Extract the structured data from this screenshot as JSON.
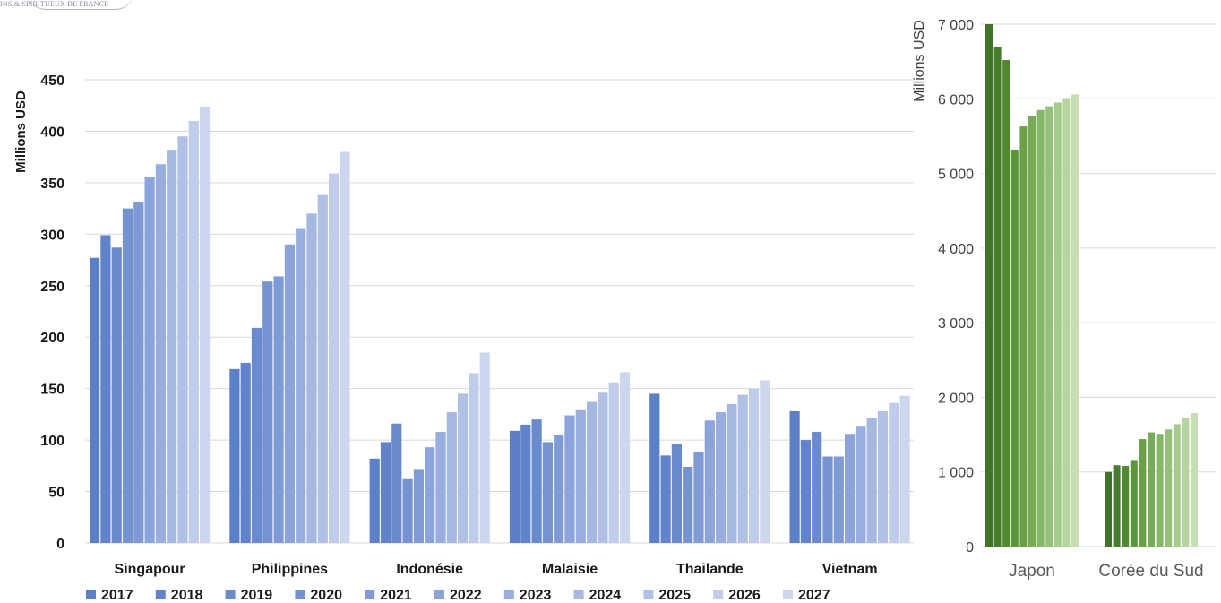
{
  "header": {
    "source_text": "INS & SPIRITUEUX DE FRANCE"
  },
  "chart_data": [
    {
      "type": "bar",
      "ylabel": "Millions USD",
      "xlabel": "",
      "ylim": [
        0,
        450
      ],
      "y_ticks": [
        0,
        50,
        100,
        150,
        200,
        250,
        300,
        350,
        400,
        450
      ],
      "grid": true,
      "legend_position": "bottom",
      "categories": [
        "Singapour",
        "Philippines",
        "Indonésie",
        "Malaisie",
        "Thailande",
        "Vietnam"
      ],
      "series": [
        {
          "name": "2017",
          "color": "#5b7fc9",
          "values": [
            277,
            169,
            82,
            109,
            145,
            128
          ]
        },
        {
          "name": "2018",
          "color": "#6183cb",
          "values": [
            299,
            175,
            98,
            115,
            85,
            100
          ]
        },
        {
          "name": "2019",
          "color": "#6a8ace",
          "values": [
            287,
            209,
            116,
            120,
            96,
            108
          ]
        },
        {
          "name": "2020",
          "color": "#7592d1",
          "values": [
            325,
            254,
            62,
            98,
            74,
            84
          ]
        },
        {
          "name": "2021",
          "color": "#7f9bd5",
          "values": [
            331,
            259,
            71,
            105,
            88,
            84
          ]
        },
        {
          "name": "2022",
          "color": "#8ba4d9",
          "values": [
            356,
            290,
            93,
            124,
            119,
            106
          ]
        },
        {
          "name": "2023",
          "color": "#97aede",
          "values": [
            368,
            305,
            108,
            129,
            127,
            113
          ]
        },
        {
          "name": "2024",
          "color": "#a4b8e2",
          "values": [
            382,
            320,
            127,
            137,
            135,
            121
          ]
        },
        {
          "name": "2025",
          "color": "#b1c1e6",
          "values": [
            395,
            338,
            145,
            146,
            144,
            128
          ]
        },
        {
          "name": "2026",
          "color": "#bfcceb",
          "values": [
            410,
            359,
            165,
            156,
            150,
            136
          ]
        },
        {
          "name": "2027",
          "color": "#ccd6ef",
          "values": [
            424,
            380,
            185,
            166,
            158,
            143
          ]
        }
      ]
    },
    {
      "type": "bar",
      "ylabel": "Millions USD",
      "xlabel": "",
      "ylim": [
        0,
        7000
      ],
      "y_ticks": [
        0,
        1000,
        2000,
        3000,
        4000,
        5000,
        6000,
        7000
      ],
      "y_tick_labels": [
        "0",
        "1 000",
        "2 000",
        "3 000",
        "4 000",
        "5 000",
        "6 000",
        "7 000"
      ],
      "grid": true,
      "categories": [
        "Japon",
        "Corée du Sud"
      ],
      "colors": [
        "#3f7325",
        "#477d2a",
        "#518932",
        "#5c953c",
        "#69a048",
        "#77ab58",
        "#86b668",
        "#95c079",
        "#a5ca8b",
        "#b5d49e",
        "#c6deb2"
      ],
      "series": [
        {
          "name": "2017",
          "values": [
            7000,
            1000
          ]
        },
        {
          "name": "2018",
          "values": [
            6700,
            1090
          ]
        },
        {
          "name": "2019",
          "values": [
            6520,
            1080
          ]
        },
        {
          "name": "2020",
          "values": [
            5320,
            1160
          ]
        },
        {
          "name": "2021",
          "values": [
            5630,
            1440
          ]
        },
        {
          "name": "2022",
          "values": [
            5770,
            1530
          ]
        },
        {
          "name": "2023",
          "values": [
            5850,
            1510
          ]
        },
        {
          "name": "2024",
          "values": [
            5900,
            1570
          ]
        },
        {
          "name": "2025",
          "values": [
            5950,
            1640
          ]
        },
        {
          "name": "2026",
          "values": [
            6010,
            1720
          ]
        },
        {
          "name": "2027",
          "values": [
            6060,
            1790
          ]
        }
      ]
    }
  ]
}
